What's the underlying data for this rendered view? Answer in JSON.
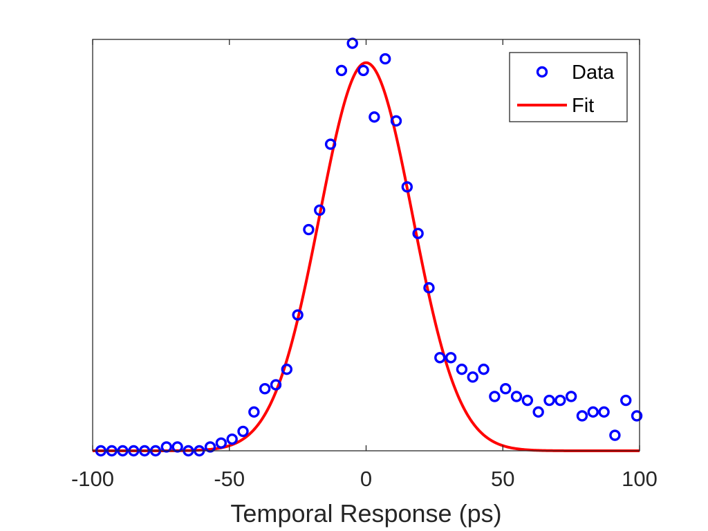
{
  "chart_data": {
    "type": "scatter",
    "title": "",
    "xlabel": "Temporal Response (ps)",
    "ylabel": "",
    "xlim": [
      -100,
      100
    ],
    "ylim": [
      0,
      1.06
    ],
    "xticks": [
      -100,
      -50,
      0,
      50,
      100
    ],
    "xtick_labels": [
      "-100",
      "-50",
      "0",
      "50",
      "100"
    ],
    "yticks": [],
    "grid": false,
    "legend_position": "top-right",
    "series": [
      {
        "name": "Data",
        "kind": "markers",
        "marker": "circle",
        "color": "#0000ff",
        "x": [
          -97,
          -93,
          -89,
          -85,
          -81,
          -77,
          -73,
          -69,
          -65,
          -61,
          -57,
          -53,
          -49,
          -45,
          -41,
          -37,
          -33,
          -29,
          -25,
          -21,
          -17,
          -13,
          -9,
          -5,
          -1,
          3,
          7,
          11,
          15,
          19,
          23,
          27,
          31,
          35,
          39,
          43,
          47,
          51,
          55,
          59,
          63,
          67,
          71,
          75,
          79,
          83,
          87,
          91,
          95,
          99
        ],
        "y": [
          0,
          0,
          0,
          0,
          0,
          0,
          0.01,
          0.01,
          0,
          0,
          0.01,
          0.02,
          0.03,
          0.05,
          0.1,
          0.16,
          0.17,
          0.21,
          0.35,
          0.57,
          0.62,
          0.79,
          0.98,
          1.05,
          0.98,
          0.86,
          1.01,
          0.85,
          0.68,
          0.56,
          0.42,
          0.24,
          0.24,
          0.21,
          0.19,
          0.21,
          0.14,
          0.16,
          0.14,
          0.13,
          0.1,
          0.13,
          0.13,
          0.14,
          0.09,
          0.1,
          0.1,
          0.04,
          0.13,
          0.09
        ]
      },
      {
        "name": "Fit",
        "kind": "line",
        "color": "#ff0000",
        "model": "gaussian",
        "amplitude": 1.0,
        "center": 0,
        "sigma": 17
      }
    ]
  }
}
